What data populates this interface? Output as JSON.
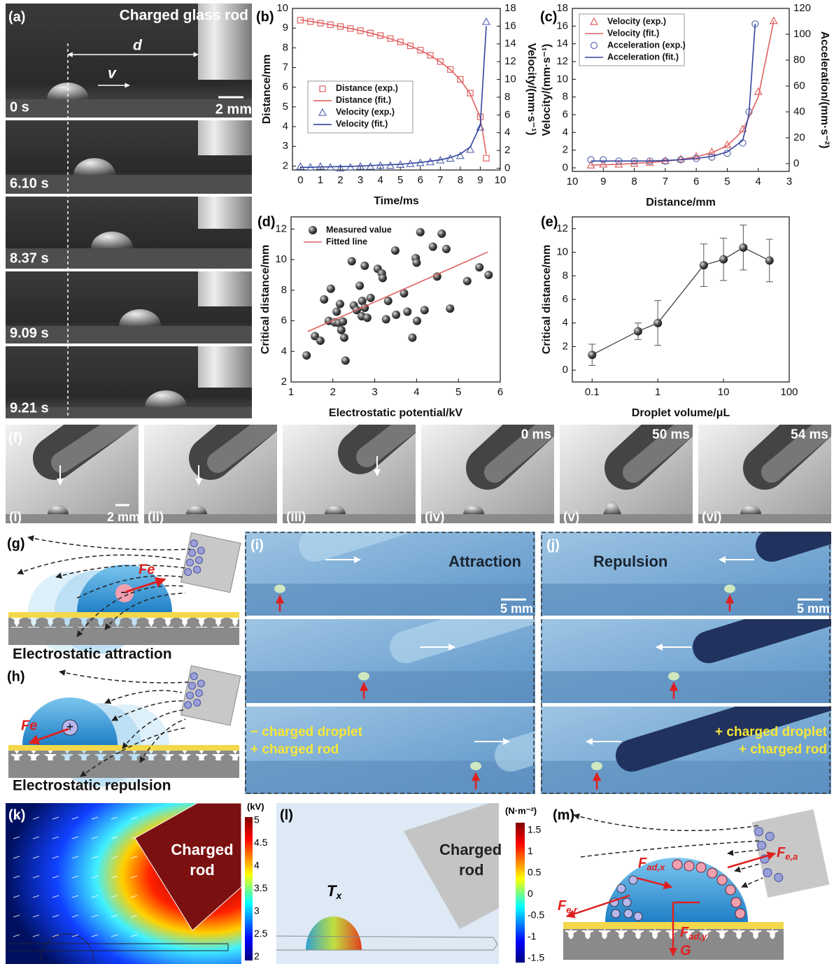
{
  "figure": {
    "a": {
      "label": "(a)",
      "title": "Charged glass rod",
      "distance": "d",
      "velocity": "v",
      "scale": "2 mm",
      "times": [
        "0 s",
        "6.10 s",
        "8.37 s",
        "9.09 s",
        "9.21 s"
      ]
    },
    "f": {
      "label": "(f)",
      "scale": "2 mm",
      "frames": [
        "(i)",
        "(ii)",
        "(iii)",
        "(iv)",
        "(v)",
        "(vi)"
      ],
      "times": [
        "0 ms",
        "50 ms",
        "54 ms"
      ]
    },
    "g": {
      "label": "(g)",
      "force": "Fe",
      "caption": "Electrostatic attraction"
    },
    "h": {
      "label": "(h)",
      "force": "Fe",
      "caption": "Electrostatic repulsion"
    },
    "i": {
      "label": "(i)",
      "title": "Attraction",
      "scale": "5 mm",
      "note": [
        "− charged droplet",
        "+ charged rod"
      ]
    },
    "j": {
      "label": "(j)",
      "title": "Repulsion",
      "scale": "5 mm",
      "note": [
        "+ charged droplet",
        "+ charged rod"
      ]
    },
    "k": {
      "label": "(k)",
      "object": [
        "Charged",
        "rod"
      ],
      "unit": "(kV)",
      "colorbar": [
        5,
        4.5,
        4,
        3.5,
        3,
        2.5,
        2
      ]
    },
    "l": {
      "label": "(l)",
      "object": [
        "Charged",
        "rod"
      ],
      "unit": "(N·m⁻²)",
      "symbol": "T",
      "subscript": "x",
      "colorbar": [
        1.5,
        1,
        0.5,
        0,
        -0.5,
        -1,
        -1.5
      ]
    },
    "m": {
      "label": "(m)",
      "forces": [
        {
          "symbol": "F",
          "subscript": "e,a"
        },
        {
          "symbol": "F",
          "subscript": "ad,x"
        },
        {
          "symbol": "F",
          "subscript": "e,r"
        },
        {
          "symbol": "F",
          "subscript": "ad,y"
        },
        {
          "symbol": "G"
        }
      ]
    }
  },
  "chart_data": [
    {
      "type": "line",
      "panel_label": "(b)",
      "xlabel": "Time/ms",
      "ylabel": "Distance/mm",
      "y2label": "Velocity/(mm·s⁻¹)",
      "x": [
        0,
        0.5,
        1,
        1.5,
        2,
        2.5,
        3,
        3.5,
        4,
        4.5,
        5,
        5.5,
        6,
        6.5,
        7,
        7.5,
        8,
        8.5,
        9,
        9.3
      ],
      "xlim": [
        -0.4,
        10
      ],
      "xticks": [
        0,
        1,
        2,
        3,
        4,
        5,
        6,
        7,
        8,
        9,
        10
      ],
      "ylim": [
        1.8,
        10
      ],
      "yticks": [
        2,
        3,
        4,
        5,
        6,
        7,
        8,
        9,
        10
      ],
      "y2lim": [
        -0.2,
        18
      ],
      "y2ticks": [
        0,
        2,
        4,
        6,
        8,
        10,
        12,
        14,
        16,
        18
      ],
      "legend": "center left",
      "series": [
        {
          "name": "Distance (exp.)",
          "color": "#e06060",
          "marker": "square",
          "values": [
            9.4,
            9.33,
            9.25,
            9.17,
            9.08,
            8.98,
            8.87,
            8.75,
            8.62,
            8.47,
            8.3,
            8.1,
            7.88,
            7.62,
            7.3,
            6.9,
            6.4,
            5.7,
            4.5,
            2.4
          ]
        },
        {
          "name": "Distance (fit.)",
          "color": "#e06060",
          "marker": "none",
          "values": [
            9.42,
            9.34,
            9.26,
            9.17,
            9.08,
            8.98,
            8.87,
            8.75,
            8.61,
            8.46,
            8.29,
            8.09,
            7.87,
            7.61,
            7.29,
            6.89,
            6.38,
            5.66,
            4.45,
            2.6
          ]
        },
        {
          "name": "Velocity (exp.)",
          "color": "#5a6ab0",
          "marker": "triangle",
          "axis": "y2",
          "values": [
            0.2,
            0.1,
            0.2,
            0.1,
            0,
            0.1,
            0.2,
            0.2,
            0.3,
            0.3,
            0.4,
            0.5,
            0.6,
            0.7,
            0.9,
            1.1,
            1.4,
            2.1,
            4.6,
            16.5
          ]
        },
        {
          "name": "Velocity (fit.)",
          "color": "#3344a0",
          "marker": "none",
          "axis": "y2",
          "values": [
            0.1,
            0.1,
            0.15,
            0.15,
            0.2,
            0.2,
            0.25,
            0.3,
            0.35,
            0.4,
            0.45,
            0.55,
            0.65,
            0.8,
            0.95,
            1.2,
            1.6,
            2.4,
            4.8,
            16
          ]
        }
      ]
    },
    {
      "type": "line",
      "panel_label": "(c)",
      "xlabel": "Distance/mm",
      "ylabel": "Velocity/(mm·s⁻¹)",
      "y2label": "Acceleration/(mm·s⁻²)",
      "xlim": [
        10,
        3
      ],
      "xticks": [
        10,
        9,
        8,
        7,
        6,
        5,
        4,
        3
      ],
      "ylim": [
        -0.4,
        18
      ],
      "yticks": [
        0,
        2,
        4,
        6,
        8,
        10,
        12,
        14,
        16,
        18
      ],
      "y2lim": [
        -6,
        120
      ],
      "y2ticks": [
        0,
        20,
        40,
        60,
        80,
        100,
        120
      ],
      "legend": "upper left",
      "series": [
        {
          "name": "Velocity (exp.)",
          "color": "#e06060",
          "marker": "triangle",
          "x": [
            9.4,
            9,
            8.5,
            8,
            7.5,
            7,
            6.5,
            6,
            5.5,
            5,
            4.5,
            4,
            3.5
          ],
          "values": [
            0.3,
            0.4,
            0.4,
            0.5,
            0.6,
            0.8,
            1,
            1.3,
            1.8,
            2.6,
            4.4,
            8.6,
            16.6
          ]
        },
        {
          "name": "Velocity (fit.)",
          "color": "#e06060",
          "marker": "none",
          "x": [
            9.4,
            9,
            8.5,
            8,
            7.5,
            7,
            6.5,
            6,
            5.5,
            5,
            4.5,
            4,
            3.5
          ],
          "values": [
            0.3,
            0.35,
            0.4,
            0.5,
            0.6,
            0.75,
            0.95,
            1.25,
            1.7,
            2.5,
            4.2,
            8,
            16.6
          ]
        },
        {
          "name": "Acceleration (exp.)",
          "color": "#5a6ab0",
          "marker": "circle",
          "axis": "y2",
          "x": [
            9.4,
            9,
            8.5,
            8,
            7.5,
            7,
            6.5,
            6,
            5.5,
            5,
            4.5,
            4.3,
            4.1
          ],
          "values": [
            3,
            3,
            2,
            2,
            2,
            2,
            3,
            4,
            5,
            8,
            16,
            40,
            108
          ]
        },
        {
          "name": "Acceleration (fit.)",
          "color": "#3344a0",
          "marker": "none",
          "axis": "y2",
          "x": [
            9.4,
            9,
            8.5,
            8,
            7.5,
            7,
            6.5,
            6,
            5.5,
            5,
            4.5,
            4.3,
            4.1
          ],
          "values": [
            2,
            2,
            2,
            2,
            2,
            2.5,
            3,
            4,
            5.5,
            9,
            18,
            38,
            108
          ]
        }
      ]
    },
    {
      "type": "scatter",
      "panel_label": "(d)",
      "xlabel": "Electrostatic potential/kV",
      "ylabel": "Critical distance/mm",
      "xlim": [
        1,
        6
      ],
      "xticks": [
        1,
        2,
        3,
        4,
        5,
        6
      ],
      "ylim": [
        2,
        12.8
      ],
      "yticks": [
        2,
        4,
        6,
        8,
        10,
        12
      ],
      "legend": "upper left",
      "series": [
        {
          "name": "Measured value",
          "color": "#333333",
          "marker": "sphere",
          "x": [
            1.37,
            1.57,
            1.7,
            1.79,
            1.95,
            1.9,
            2.04,
            2.09,
            2.14,
            2.17,
            2.2,
            2.24,
            2.27,
            2.3,
            2.45,
            2.5,
            2.57,
            2.64,
            2.7,
            2.69,
            2.76,
            2.76,
            2.82,
            2.9,
            3.07,
            3.17,
            3.19,
            3.27,
            3.32,
            3.49,
            3.51,
            3.7,
            3.78,
            3.9,
            3.98,
            4.0,
            4.01,
            4.09,
            4.19,
            4.39,
            4.49,
            4.6,
            4.71,
            4.8,
            5.21,
            5.5,
            5.72
          ],
          "values": [
            3.74,
            5.0,
            4.7,
            7.4,
            8.1,
            6.0,
            5.9,
            6.6,
            5.85,
            7.1,
            5.4,
            5.95,
            4.9,
            3.4,
            9.9,
            7.0,
            6.7,
            8.3,
            7.3,
            6.3,
            9.6,
            6.85,
            6.2,
            7.5,
            9.4,
            9.1,
            8.8,
            6.1,
            7.3,
            10.6,
            6.4,
            7.8,
            6.6,
            4.9,
            10.1,
            9.8,
            6.0,
            11.8,
            6.7,
            10.85,
            8.9,
            11.7,
            10.7,
            6.8,
            8.6,
            9.5,
            9.0
          ]
        },
        {
          "name": "Fitted line",
          "color": "#e06060",
          "marker": "none",
          "x": [
            1.4,
            5.7
          ],
          "values": [
            5.3,
            10.5
          ]
        }
      ]
    },
    {
      "type": "errorbar",
      "xlabel": "Droplet volume/μL",
      "ylabel": "Critical distance/mm",
      "panel_label": "(e)",
      "xscale": "log",
      "xlim": [
        0.05,
        100
      ],
      "xticks": [
        0.1,
        1,
        10,
        100
      ],
      "ylim": [
        -1,
        13
      ],
      "yticks": [
        0,
        2,
        4,
        6,
        8,
        10,
        12
      ],
      "color": "#333333",
      "x": [
        0.1,
        0.5,
        1,
        5,
        10,
        20,
        50
      ],
      "values": [
        1.3,
        3.3,
        4.0,
        8.9,
        9.4,
        10.4,
        9.3
      ],
      "errors": [
        0.9,
        0.7,
        1.9,
        1.8,
        1.8,
        1.9,
        1.8
      ]
    }
  ]
}
